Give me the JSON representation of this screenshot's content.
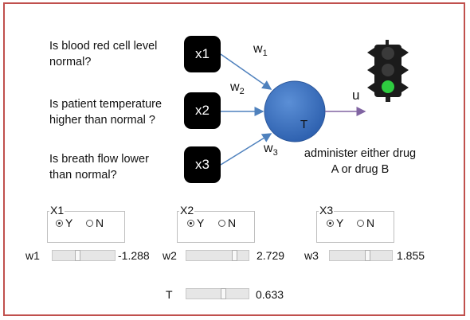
{
  "diagram": {
    "questions": [
      {
        "line1": "Is blood red cell level",
        "line2": "normal?"
      },
      {
        "line1": "Is patient temperature",
        "line2": "higher than normal ?"
      },
      {
        "line1": "Is breath flow lower",
        "line2": "than normal?"
      }
    ],
    "inputs": [
      "x1",
      "x2",
      "x3"
    ],
    "weights": [
      {
        "base": "w",
        "sub": "1"
      },
      {
        "base": "w",
        "sub": "2"
      },
      {
        "base": "w",
        "sub": "3"
      }
    ],
    "neuron_label": "T",
    "output_label": "u",
    "caption": {
      "line1": "administer either drug",
      "line2": "A or drug B"
    },
    "traffic_light_active": "green",
    "colors": {
      "neuron": "#3a73c4",
      "arrow": "#4f81bd",
      "light_green": "#2ecc40",
      "frame": "#c0504d"
    }
  },
  "controls": {
    "groups": [
      {
        "title": "X1",
        "yes": "Y",
        "no": "N",
        "selected": "Y"
      },
      {
        "title": "X2",
        "yes": "Y",
        "no": "N",
        "selected": "Y"
      },
      {
        "title": "X3",
        "yes": "Y",
        "no": "N",
        "selected": "Y"
      }
    ],
    "sliders": [
      {
        "label": "w1",
        "value": "-1.288",
        "fraction": 0.4
      },
      {
        "label": "w2",
        "value": "2.729",
        "fraction": 0.8
      },
      {
        "label": "w3",
        "value": "1.855",
        "fraction": 0.62
      },
      {
        "label": "T",
        "value": "0.633",
        "fraction": 0.6
      }
    ]
  }
}
